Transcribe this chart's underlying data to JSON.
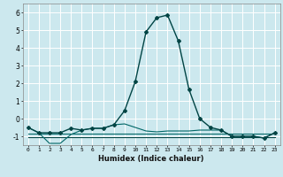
{
  "title": "",
  "xlabel": "Humidex (Indice chaleur)",
  "bg_color": "#cce8ee",
  "grid_color": "#ffffff",
  "line_color": "#006666",
  "line_color2": "#004444",
  "x_main": [
    0,
    1,
    2,
    3,
    4,
    5,
    6,
    7,
    8,
    9,
    10,
    11,
    12,
    13,
    14,
    15,
    16,
    17,
    18,
    19,
    20,
    21,
    22,
    23
  ],
  "y_main": [
    -0.5,
    -0.8,
    -0.8,
    -0.8,
    -0.55,
    -0.65,
    -0.55,
    -0.55,
    -0.35,
    0.45,
    2.1,
    4.9,
    5.7,
    5.85,
    4.4,
    1.65,
    0.0,
    -0.5,
    -0.65,
    -1.0,
    -1.0,
    -1.0,
    -1.1,
    -0.8
  ],
  "y_flat1": [
    -0.85,
    -0.85,
    -0.85,
    -0.85,
    -0.85,
    -0.85,
    -0.85,
    -0.85,
    -0.85,
    -0.85,
    -0.85,
    -0.85,
    -0.85,
    -0.85,
    -0.85,
    -0.85,
    -0.85,
    -0.85,
    -0.85,
    -0.85,
    -0.85,
    -0.85,
    -0.85,
    -0.85
  ],
  "y_flat2": [
    -1.05,
    -1.05,
    -1.05,
    -1.05,
    -1.05,
    -1.05,
    -1.05,
    -1.05,
    -1.05,
    -1.05,
    -1.05,
    -1.05,
    -1.05,
    -1.05,
    -1.05,
    -1.05,
    -1.05,
    -1.05,
    -1.05,
    -1.05,
    -1.05,
    -1.05,
    -1.05,
    -1.05
  ],
  "x_secondary": [
    0,
    1,
    2,
    3,
    4,
    5,
    6,
    7,
    8,
    9,
    10,
    11,
    12,
    13,
    14,
    15,
    16,
    17,
    18,
    19,
    20,
    21,
    22,
    23
  ],
  "y_secondary": [
    -0.5,
    -0.8,
    -1.4,
    -1.4,
    -0.9,
    -0.65,
    -0.55,
    -0.55,
    -0.35,
    -0.3,
    -0.5,
    -0.7,
    -0.75,
    -0.7,
    -0.7,
    -0.7,
    -0.65,
    -0.65,
    -0.65,
    -1.0,
    -1.0,
    -1.0,
    -1.1,
    -0.8
  ],
  "ylim": [
    -1.5,
    6.5
  ],
  "xlim": [
    -0.5,
    23.5
  ],
  "yticks": [
    -1,
    0,
    1,
    2,
    3,
    4,
    5,
    6
  ],
  "xticks": [
    0,
    1,
    2,
    3,
    4,
    5,
    6,
    7,
    8,
    9,
    10,
    11,
    12,
    13,
    14,
    15,
    16,
    17,
    18,
    19,
    20,
    21,
    22,
    23
  ],
  "xtick_labels": [
    "0",
    "1",
    "2",
    "3",
    "4",
    "5",
    "6",
    "7",
    "8",
    "9",
    "10",
    "11",
    "12",
    "13",
    "14",
    "15",
    "16",
    "17",
    "18",
    "19",
    "20",
    "21",
    "22",
    "23"
  ],
  "marker": "D",
  "marker_size": 2.0,
  "linewidth": 1.0
}
